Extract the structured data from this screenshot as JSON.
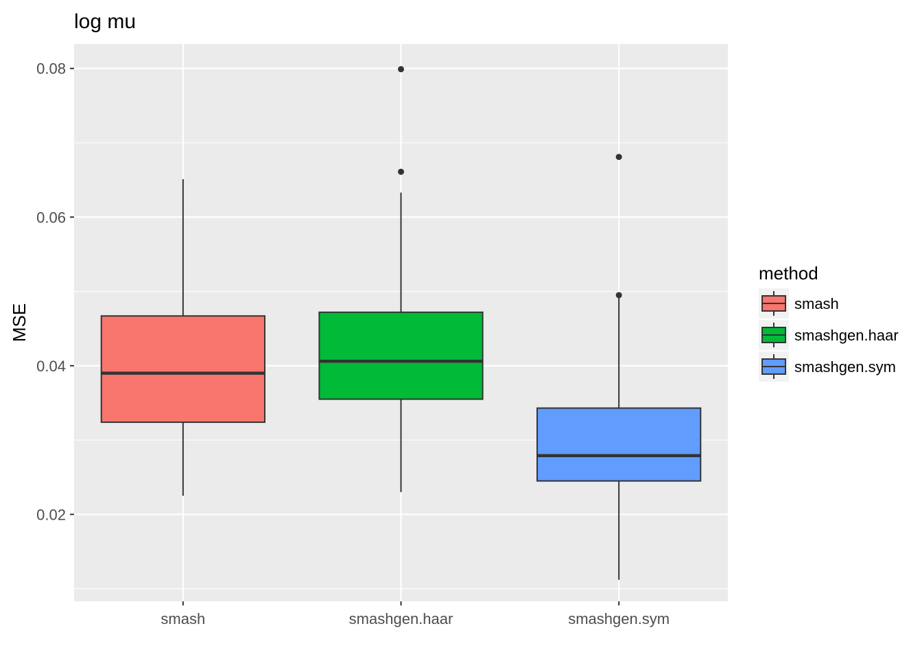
{
  "chart_data": {
    "type": "box",
    "title": "log mu",
    "xlabel": "",
    "ylabel": "MSE",
    "ylim": [
      0.0083,
      0.0833
    ],
    "y_ticks": [
      0.02,
      0.04,
      0.06,
      0.08
    ],
    "y_tick_labels": [
      "0.02",
      "0.04",
      "0.06",
      "0.08"
    ],
    "categories": [
      "smash",
      "smashgen.haar",
      "smashgen.sym"
    ],
    "boxes": [
      {
        "category": "smash",
        "fill": "#F8766D",
        "whisker_low": 0.0225,
        "q1": 0.0324,
        "median": 0.039,
        "q3": 0.0467,
        "whisker_high": 0.0651,
        "outliers": []
      },
      {
        "category": "smashgen.haar",
        "fill": "#00BA38",
        "whisker_low": 0.023,
        "q1": 0.0355,
        "median": 0.0406,
        "q3": 0.0472,
        "whisker_high": 0.0633,
        "outliers": [
          0.0661,
          0.0799
        ]
      },
      {
        "category": "smashgen.sym",
        "fill": "#619CFF",
        "whisker_low": 0.0112,
        "q1": 0.0245,
        "median": 0.0279,
        "q3": 0.0343,
        "whisker_high": 0.0493,
        "outliers": [
          0.0495,
          0.0681
        ]
      }
    ],
    "legend": {
      "title": "method",
      "position": "right",
      "entries": [
        "smash",
        "smashgen.haar",
        "smashgen.sym"
      ]
    },
    "grid": true,
    "panel_background": "#EBEBEB",
    "grid_color": "#FFFFFF",
    "line_color": "#333333"
  }
}
